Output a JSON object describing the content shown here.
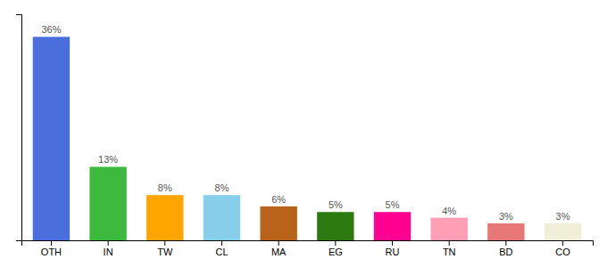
{
  "chart_data": {
    "type": "bar",
    "categories": [
      "OTH",
      "IN",
      "TW",
      "CL",
      "MA",
      "EG",
      "RU",
      "TN",
      "BD",
      "CO"
    ],
    "values": [
      36,
      13,
      8,
      8,
      6,
      5,
      5,
      4,
      3,
      3
    ],
    "value_labels": [
      "36%",
      "13%",
      "8%",
      "8%",
      "6%",
      "5%",
      "5%",
      "4%",
      "3%",
      "3%"
    ],
    "colors": [
      "#4a6edb",
      "#3dba3d",
      "#ffa500",
      "#87ceeb",
      "#b8621a",
      "#2d7a10",
      "#ff0090",
      "#ff9eb5",
      "#e87878",
      "#f0f0d8"
    ],
    "ylim": [
      0,
      40
    ],
    "data_labels": true,
    "tick_labels": "x"
  }
}
